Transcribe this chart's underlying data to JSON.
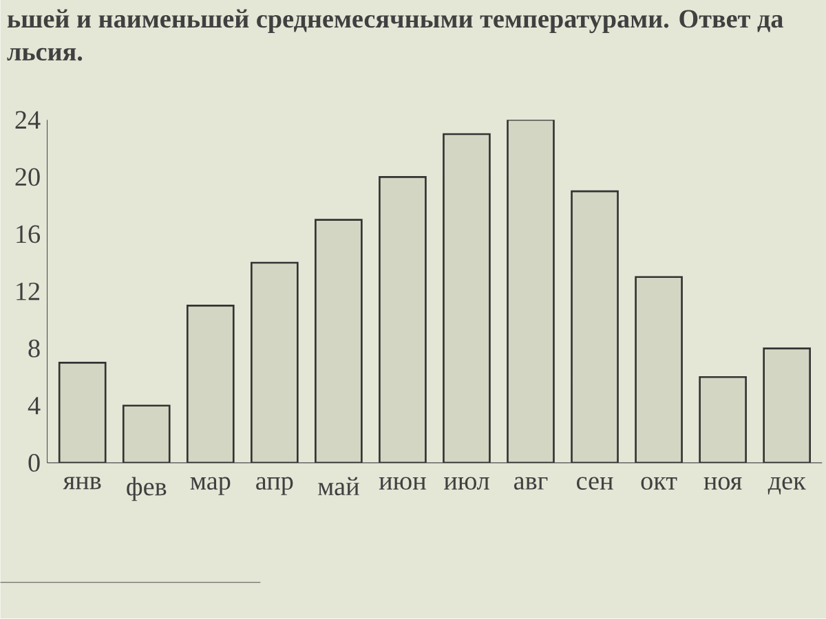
{
  "chart_data": {
    "type": "bar",
    "categories": [
      "янв",
      "фев",
      "мар",
      "апр",
      "май",
      "июн",
      "июл",
      "авг",
      "сен",
      "окт",
      "ноя",
      "дек"
    ],
    "values": [
      7,
      4,
      11,
      14,
      17,
      20,
      23,
      24,
      19,
      13,
      6,
      8
    ],
    "color": "#d3d6c2",
    "ylim": [
      0,
      24
    ],
    "yticks": [
      0,
      4,
      8,
      12,
      16,
      20,
      24
    ],
    "grid": false,
    "annotations": [
      "ьшей и наименьшей среднемесячными температурами. Ответ да",
      "льсия."
    ]
  }
}
